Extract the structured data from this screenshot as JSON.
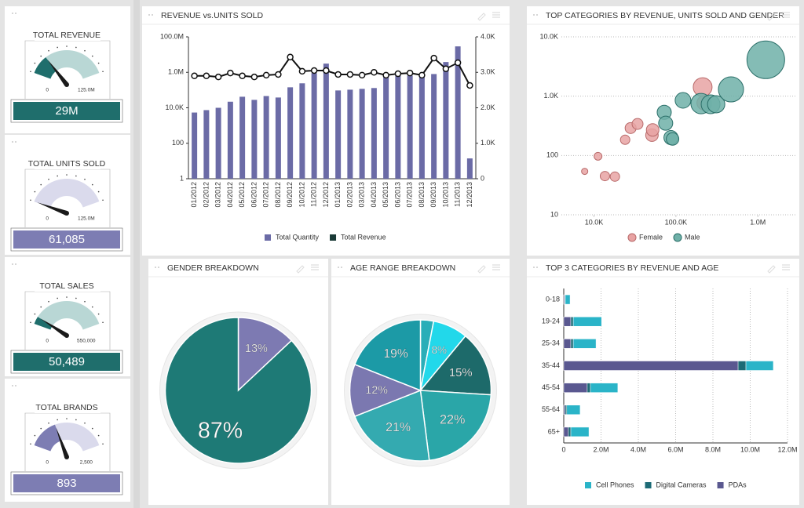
{
  "gauges": [
    {
      "title": "TOTAL REVENUE",
      "value": 29000000,
      "value_label": "29M",
      "ticks": [
        0,
        {
          "value": 125000000,
          "label": "125.0M"
        }
      ],
      "color": "#1f6e6c",
      "track_color": "#b9d7d5"
    },
    {
      "title": "TOTAL UNITS SOLD",
      "value": 61085,
      "value_label": "61,085",
      "ticks": [
        0,
        {
          "value": 125000000,
          "label": "125.0M"
        }
      ],
      "color": "#7d7db3",
      "track_color": "#dadaec"
    },
    {
      "title": "TOTAL SALES",
      "value": 50489,
      "value_label": "50,489",
      "ticks": [
        0,
        {
          "value": 550000,
          "label": "550,000"
        }
      ],
      "color": "#1f6e6c",
      "track_color": "#b9d7d5"
    },
    {
      "title": "TOTAL BRANDS",
      "value": 893,
      "value_label": "893",
      "ticks": [
        0,
        {
          "value": 2500,
          "label": "2,500"
        }
      ],
      "color": "#7d7db3",
      "track_color": "#dadaec"
    }
  ],
  "chart_data": [
    {
      "type": "bar",
      "title": "REVENUE vs.UNITS SOLD",
      "categories": [
        "01/2012",
        "02/2012",
        "03/2012",
        "04/2012",
        "05/2012",
        "06/2012",
        "07/2012",
        "08/2012",
        "09/2012",
        "10/2012",
        "11/2012",
        "12/2012",
        "01/2013",
        "02/2013",
        "03/2013",
        "04/2013",
        "05/2013",
        "06/2013",
        "07/2013",
        "08/2013",
        "09/2013",
        "10/2013",
        "11/2013",
        "12/2013"
      ],
      "series": [
        {
          "name": "Total Quantity",
          "color": "#6b6ba6",
          "values": [
            5400,
            7400,
            10000,
            22000,
            42000,
            28000,
            46000,
            38000,
            143000,
            240000,
            900000,
            3100000,
            95000,
            105000,
            117000,
            130000,
            540000,
            740000,
            660000,
            600000,
            800000,
            3800000,
            29000000,
            14
          ]
        },
        {
          "name": "Total Revenue",
          "color": "#1a3a36",
          "type": "line",
          "axis": "y2",
          "values": [
            2900,
            2900,
            2870,
            2980,
            2900,
            2870,
            2920,
            2940,
            3430,
            3030,
            3050,
            3050,
            2940,
            2940,
            2920,
            3000,
            2920,
            2960,
            2980,
            2920,
            3400,
            3100,
            3270,
            2630
          ]
        }
      ],
      "ylim": [
        1,
        100000000
      ],
      "log_scale": true,
      "yticks": [
        1,
        100,
        {
          "value": 10000,
          "label": "10.0K"
        },
        {
          "value": 1000000,
          "label": "1.0M"
        },
        {
          "value": 100000000,
          "label": "100.0M"
        }
      ],
      "y2lim": [
        0,
        4000
      ],
      "y2ticks": [
        0,
        {
          "value": 1000,
          "label": "1.0K"
        },
        {
          "value": 2000,
          "label": "2.0K"
        },
        {
          "value": 3000,
          "label": "3.0K"
        },
        {
          "value": 4000,
          "label": "4.0K"
        }
      ],
      "legend": "bottom"
    },
    {
      "type": "scatter",
      "title": "TOP CATEGORIES BY REVENUE, UNITS SOLD AND GENDER",
      "series": [
        {
          "name": "Female",
          "color": "#e8a3a3",
          "edge_color": "#b86a6a",
          "x": [
            7700,
            11200,
            13600,
            18000,
            24000,
            28000,
            34000,
            51000,
            52000,
            212000,
            220000
          ],
          "y": [
            54,
            97,
            45,
            44,
            184,
            290,
            340,
            220,
            270,
            1420,
            770
          ],
          "sizes": [
            4,
            5,
            6,
            6,
            6,
            7,
            7,
            8,
            8,
            12,
            9
          ]
        },
        {
          "name": "Male",
          "color": "#6fb0a8",
          "edge_color": "#2a6e68",
          "x": [
            72000,
            75000,
            87000,
            91000,
            122000,
            203000,
            265000,
            310000,
            470000,
            1250000
          ],
          "y": [
            535,
            350,
            200,
            190,
            850,
            750,
            730,
            730,
            1300,
            4100
          ],
          "sizes": [
            9,
            9,
            9,
            8,
            10,
            13,
            12,
            11,
            16,
            24
          ]
        }
      ],
      "xlim": [
        4000,
        3000000
      ],
      "ylim": [
        10,
        10000
      ],
      "log_x": true,
      "log_y": true,
      "xticks": [
        {
          "value": 10000,
          "label": "10.0K"
        },
        {
          "value": 100000,
          "label": "100.0K"
        },
        {
          "value": 1000000,
          "label": "1.0M"
        }
      ],
      "yticks": [
        10,
        100,
        {
          "value": 1000,
          "label": "1.0K"
        },
        {
          "value": 10000,
          "label": "10.0K"
        }
      ],
      "grid": true,
      "legend": "bottom"
    },
    {
      "type": "pie",
      "title": "GENDER BREAKDOWN",
      "values": [
        13,
        87
      ],
      "value_labels": [
        "13%",
        "87%"
      ],
      "colors": [
        "#7d7ab2",
        "#1e7a76"
      ]
    },
    {
      "type": "pie",
      "title": "AGE RANGE BREAKDOWN",
      "values": [
        3,
        8,
        15,
        22,
        21,
        12,
        19
      ],
      "value_labels": [
        null,
        "8%",
        "15%",
        "22%",
        "21%",
        "12%",
        "19%"
      ],
      "colors": [
        "#2aaeb8",
        "#22d8ea",
        "#1d6a6a",
        "#2aa6a8",
        "#34aab0",
        "#7b78b0",
        "#1c9aa6"
      ]
    },
    {
      "type": "bar",
      "orientation": "horizontal",
      "stacked": true,
      "title": "TOP 3 CATEGORIES BY REVENUE AND AGE",
      "categories": [
        "0-18",
        "19-24",
        "25-34",
        "35-44",
        "45-54",
        "55-64",
        "65+"
      ],
      "series": [
        {
          "name": "Cell Phones",
          "color": "#2ab4c8",
          "values": [
            260000,
            1520000,
            1220000,
            1470000,
            1470000,
            720000,
            970000
          ]
        },
        {
          "name": "Digital Cameras",
          "color": "#1d6b76",
          "values": [
            30000,
            130000,
            130000,
            420000,
            170000,
            80000,
            130000
          ]
        },
        {
          "name": "PDAs",
          "color": "#5a5890",
          "values": [
            50000,
            380000,
            380000,
            9350000,
            1260000,
            80000,
            250000
          ]
        }
      ],
      "xlim": [
        0,
        12000000
      ],
      "xticks": [
        0,
        {
          "value": 2000000,
          "label": "2.0M"
        },
        {
          "value": 4000000,
          "label": "4.0M"
        },
        {
          "value": 6000000,
          "label": "6.0M"
        },
        {
          "value": 8000000,
          "label": "8.0M"
        },
        {
          "value": 10000000,
          "label": "10.0M"
        },
        {
          "value": 12000000,
          "label": "12.0M"
        }
      ],
      "grid": true,
      "legend": "bottom"
    }
  ]
}
